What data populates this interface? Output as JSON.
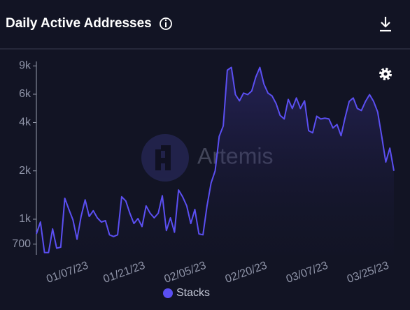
{
  "chart_data": {
    "type": "line",
    "title": "Daily Active Addresses",
    "watermark": "Artemis",
    "categories": [
      null,
      null,
      null,
      null,
      null,
      null,
      null,
      null,
      null,
      null,
      null,
      null,
      "01/07/23",
      null,
      null,
      null,
      null,
      null,
      null,
      null,
      null,
      null,
      null,
      null,
      null,
      null,
      "01/21/23",
      null,
      null,
      null,
      null,
      null,
      null,
      null,
      null,
      null,
      null,
      null,
      null,
      null,
      null,
      "02/05/23",
      null,
      null,
      null,
      null,
      null,
      null,
      null,
      null,
      null,
      null,
      null,
      null,
      null,
      null,
      "02/20/23",
      null,
      null,
      null,
      null,
      null,
      null,
      null,
      null,
      null,
      null,
      null,
      null,
      null,
      null,
      "03/07/23",
      null,
      null,
      null,
      null,
      null,
      null,
      null,
      null,
      null,
      null,
      null,
      null,
      null,
      null,
      "03/25/23",
      null,
      null
    ],
    "series": [
      {
        "name": "Stacks",
        "color": "#5b4ff2",
        "values": [
          810,
          960,
          620,
          620,
          870,
          660,
          670,
          1350,
          1150,
          990,
          750,
          1040,
          1320,
          1040,
          1130,
          1020,
          960,
          980,
          800,
          780,
          800,
          1380,
          1300,
          1090,
          940,
          1010,
          900,
          1210,
          1090,
          1020,
          1090,
          1400,
          850,
          1020,
          830,
          1520,
          1380,
          1210,
          940,
          1150,
          810,
          800,
          1210,
          1680,
          2000,
          3280,
          3810,
          8470,
          8820,
          5970,
          5460,
          6100,
          5970,
          6280,
          7670,
          8820,
          6940,
          6100,
          5860,
          5250,
          4430,
          4210,
          5570,
          4890,
          5690,
          4890,
          5460,
          3560,
          3450,
          4380,
          4210,
          4260,
          4210,
          3700,
          3890,
          3310,
          4300,
          5410,
          5690,
          4890,
          4750,
          5410,
          5970,
          5410,
          4650,
          3280,
          2270,
          2770,
          2000
        ]
      }
    ],
    "ylim": [
      600,
      9600
    ],
    "log_scale": true,
    "yticks": [
      700,
      {
        "value": 1000,
        "label": "1k"
      },
      {
        "value": 2000,
        "label": "2k"
      },
      {
        "value": 4000,
        "label": "4k"
      },
      {
        "value": 6000,
        "label": "6k"
      },
      {
        "value": 9000,
        "label": "9k"
      }
    ],
    "legend": "bottom"
  }
}
